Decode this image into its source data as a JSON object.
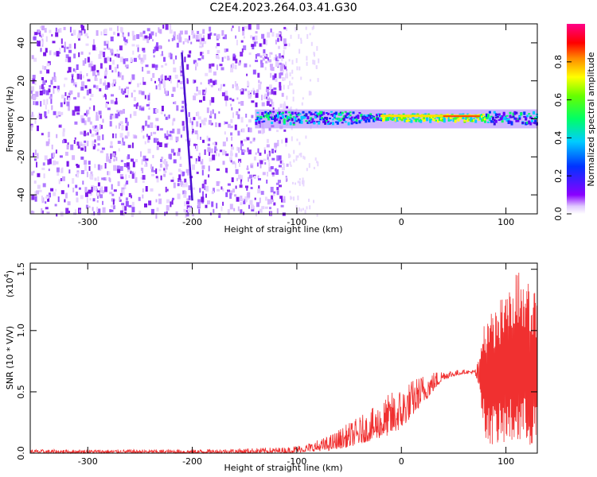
{
  "title": "C2E4.2023.264.03.41.G30",
  "spectrogram": {
    "xlabel": "Height of straight line (km)",
    "ylabel": "Frequency (Hz)",
    "xticks": [
      -300,
      -200,
      -100,
      0,
      100
    ],
    "yticks": [
      -40,
      -20,
      0,
      20,
      40
    ],
    "xlim": [
      -355,
      130
    ],
    "ylim": [
      -50,
      50
    ],
    "colorbar": {
      "label": "Normalized spectral amplitude",
      "ticks": [
        "0.0",
        "0.2",
        "0.4",
        "0.6",
        "0.8"
      ],
      "range": [
        0,
        1
      ]
    }
  },
  "chart_data": {
    "type": "line",
    "xlabel": "Height of straight line (km)",
    "ylabel": "SNR (10 * V/V)",
    "scale_label": "(x10",
    "scale_exp": "4",
    "scale_close": ")",
    "xticks": [
      -300,
      -200,
      -100,
      0,
      100
    ],
    "yticks": [
      "0.0",
      "0.5",
      "1.0",
      "1.5"
    ],
    "xlim": [
      -355,
      130
    ],
    "ylim": [
      0,
      1.55
    ],
    "color": "#f03030",
    "envelope": {
      "x": [
        -355,
        -300,
        -250,
        -200,
        -150,
        -110,
        -90,
        -70,
        -50,
        -30,
        -10,
        0,
        10,
        20,
        30,
        40,
        60,
        70,
        75,
        80,
        90,
        100,
        110,
        120,
        130
      ],
      "y_min": [
        0.0,
        0.0,
        0.0,
        0.0,
        0.0,
        0.0,
        0.01,
        0.02,
        0.05,
        0.1,
        0.15,
        0.2,
        0.3,
        0.4,
        0.5,
        0.6,
        0.65,
        0.65,
        0.5,
        0.1,
        0.05,
        0.05,
        0.05,
        0.05,
        0.05
      ],
      "y_max": [
        0.03,
        0.03,
        0.03,
        0.03,
        0.04,
        0.05,
        0.08,
        0.14,
        0.25,
        0.35,
        0.5,
        0.55,
        0.6,
        0.65,
        0.67,
        0.68,
        0.68,
        0.68,
        0.8,
        1.1,
        1.2,
        1.3,
        1.5,
        1.4,
        1.3
      ]
    }
  }
}
